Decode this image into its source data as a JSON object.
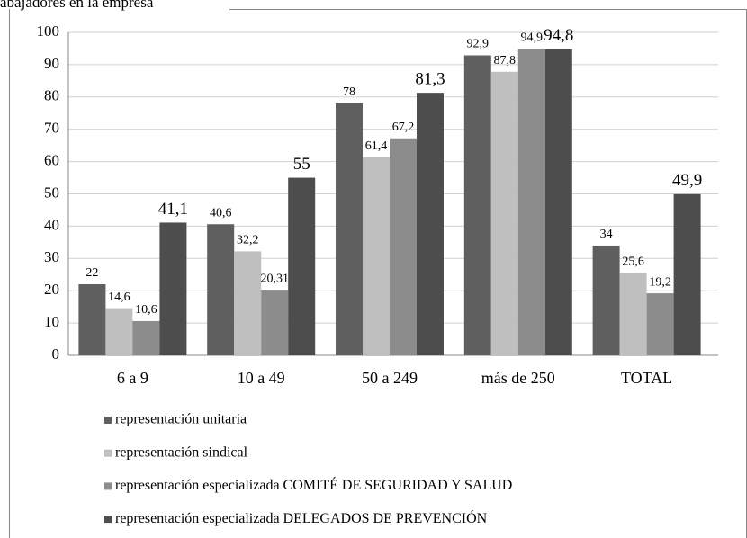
{
  "chart_data": {
    "type": "bar",
    "title": "abajadores en la empresa",
    "categories": [
      "6 a 9",
      "10 a 49",
      "50 a 249",
      "más de 250",
      "TOTAL"
    ],
    "series": [
      {
        "name": "representación unitaria",
        "color": "#5f5f5f",
        "values": [
          22,
          40.6,
          78,
          92.9,
          34
        ],
        "value_labels": [
          "22",
          "40,6",
          "78",
          "92,9",
          "34"
        ]
      },
      {
        "name": "representación sindical",
        "color": "#bfbfbf",
        "values": [
          14.6,
          32.2,
          61.4,
          87.8,
          25.6
        ],
        "value_labels": [
          "14,6",
          "32,2",
          "61,4",
          "87,8",
          "25,6"
        ]
      },
      {
        "name": "representación especializada COMITÉ DE SEGURIDAD Y SALUD",
        "color": "#8c8c8c",
        "values": [
          10.6,
          20.31,
          67.2,
          94.9,
          19.2
        ],
        "value_labels": [
          "10,6",
          "20,31",
          "67,2",
          "94,9",
          "19,2"
        ]
      },
      {
        "name": "representación especializada DELEGADOS DE PREVENCIÓN",
        "color": "#4d4d4d",
        "values": [
          41.1,
          55,
          81.3,
          94.8,
          49.9
        ],
        "value_labels": [
          "41,1",
          "55",
          "81,3",
          "94,8",
          "49,9"
        ]
      }
    ],
    "ylim": [
      0,
      100
    ],
    "yticks": [
      0,
      10,
      20,
      30,
      40,
      50,
      60,
      70,
      80,
      90,
      100
    ],
    "grid": true,
    "legend": "bottom"
  }
}
